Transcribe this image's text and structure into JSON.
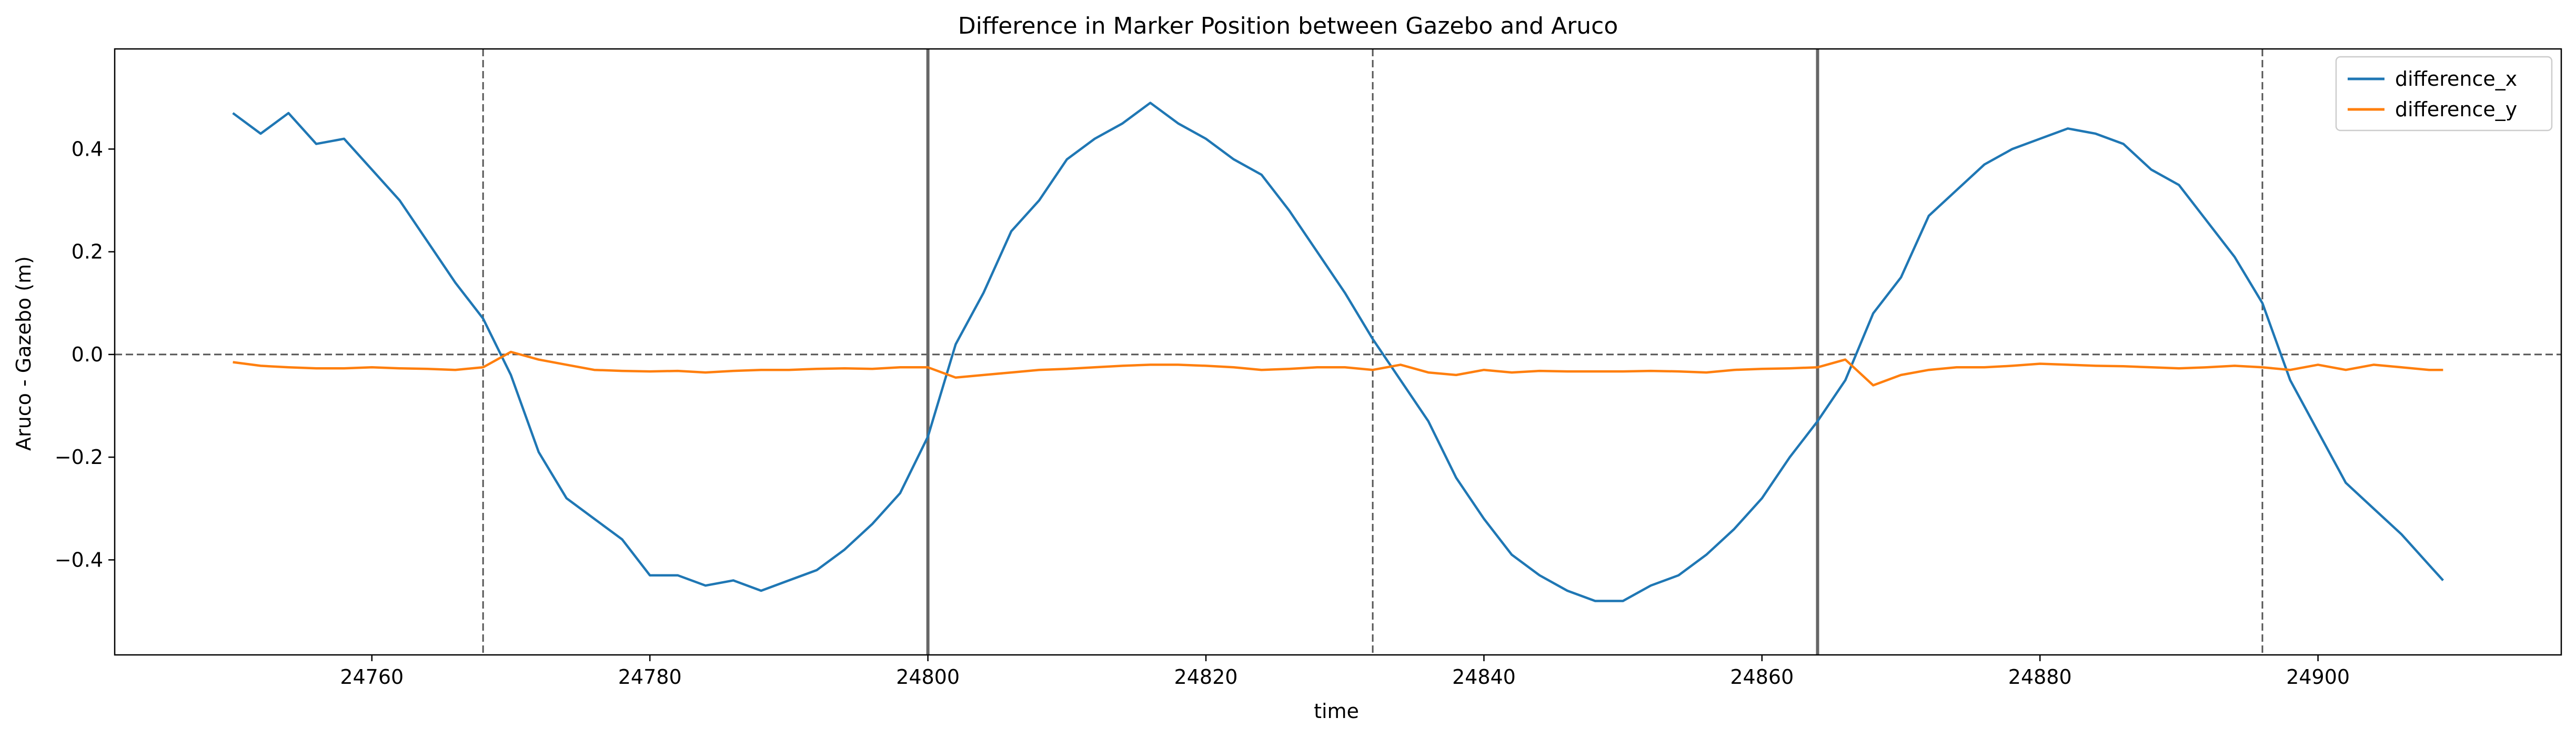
{
  "chart_data": {
    "type": "line",
    "title": "Difference in Marker Position between Gazebo and Aruco",
    "xlabel": "time",
    "ylabel": "Aruco - Gazebo (m)",
    "xlim": [
      24741.5,
      24917.5
    ],
    "ylim": [
      -0.585,
      0.595
    ],
    "xticks": [
      24760,
      24780,
      24800,
      24820,
      24840,
      24860,
      24880,
      24900
    ],
    "yticks": [
      -0.4,
      -0.2,
      0.0,
      0.2,
      0.4
    ],
    "ytick_labels": [
      "−0.4",
      "−0.2",
      "0.0",
      "0.2",
      "0.4"
    ],
    "legend_position": "top-right",
    "grid": false,
    "reference_lines": {
      "horizontal_dashed": [
        0.0
      ],
      "vertical_dashed": [
        24768,
        24832,
        24896
      ],
      "vertical_solid": [
        24800,
        24864
      ]
    },
    "series": [
      {
        "name": "difference_x",
        "color": "#1f77b4",
        "x": [
          24750,
          24752,
          24754,
          24756,
          24758,
          24760,
          24762,
          24764,
          24766,
          24768,
          24770,
          24772,
          24774,
          24776,
          24778,
          24780,
          24782,
          24784,
          24786,
          24788,
          24790,
          24792,
          24794,
          24796,
          24798,
          24800,
          24802,
          24804,
          24806,
          24808,
          24810,
          24812,
          24814,
          24816,
          24818,
          24820,
          24822,
          24824,
          24826,
          24828,
          24830,
          24832,
          24834,
          24836,
          24838,
          24840,
          24842,
          24844,
          24846,
          24848,
          24850,
          24852,
          24854,
          24856,
          24858,
          24860,
          24862,
          24864,
          24866,
          24868,
          24870,
          24872,
          24874,
          24876,
          24878,
          24880,
          24882,
          24884,
          24886,
          24888,
          24890,
          24892,
          24894,
          24896,
          24898,
          24900,
          24902,
          24904,
          24906,
          24908,
          24909
        ],
        "y": [
          0.47,
          0.43,
          0.47,
          0.41,
          0.42,
          0.36,
          0.3,
          0.22,
          0.14,
          0.07,
          -0.04,
          -0.19,
          -0.28,
          -0.32,
          -0.36,
          -0.43,
          -0.43,
          -0.45,
          -0.44,
          -0.46,
          -0.44,
          -0.42,
          -0.38,
          -0.33,
          -0.27,
          -0.16,
          0.02,
          0.12,
          0.24,
          0.3,
          0.38,
          0.42,
          0.45,
          0.49,
          0.45,
          0.42,
          0.38,
          0.35,
          0.28,
          0.2,
          0.12,
          0.03,
          -0.05,
          -0.13,
          -0.24,
          -0.32,
          -0.39,
          -0.43,
          -0.46,
          -0.48,
          -0.48,
          -0.45,
          -0.43,
          -0.39,
          -0.34,
          -0.28,
          -0.2,
          -0.13,
          -0.05,
          0.08,
          0.15,
          0.27,
          0.32,
          0.37,
          0.4,
          0.42,
          0.44,
          0.43,
          0.41,
          0.36,
          0.33,
          0.26,
          0.19,
          0.1,
          -0.05,
          -0.15,
          -0.25,
          -0.3,
          -0.35,
          -0.41,
          -0.44
        ]
      },
      {
        "name": "difference_y",
        "color": "#ff7f0e",
        "x": [
          24750,
          24752,
          24754,
          24756,
          24758,
          24760,
          24762,
          24764,
          24766,
          24768,
          24770,
          24772,
          24774,
          24776,
          24778,
          24780,
          24782,
          24784,
          24786,
          24788,
          24790,
          24792,
          24794,
          24796,
          24798,
          24800,
          24802,
          24804,
          24806,
          24808,
          24810,
          24812,
          24814,
          24816,
          24818,
          24820,
          24822,
          24824,
          24826,
          24828,
          24830,
          24832,
          24834,
          24836,
          24838,
          24840,
          24842,
          24844,
          24846,
          24848,
          24850,
          24852,
          24854,
          24856,
          24858,
          24860,
          24862,
          24864,
          24866,
          24868,
          24870,
          24872,
          24874,
          24876,
          24878,
          24880,
          24882,
          24884,
          24886,
          24888,
          24890,
          24892,
          24894,
          24896,
          24898,
          24900,
          24902,
          24904,
          24906,
          24908,
          24909
        ],
        "y": [
          -0.015,
          -0.022,
          -0.025,
          -0.027,
          -0.027,
          -0.025,
          -0.027,
          -0.028,
          -0.03,
          -0.025,
          0.005,
          -0.01,
          -0.02,
          -0.03,
          -0.032,
          -0.033,
          -0.032,
          -0.035,
          -0.032,
          -0.03,
          -0.03,
          -0.028,
          -0.027,
          -0.028,
          -0.025,
          -0.025,
          -0.045,
          -0.04,
          -0.035,
          -0.03,
          -0.028,
          -0.025,
          -0.022,
          -0.02,
          -0.02,
          -0.022,
          -0.025,
          -0.03,
          -0.028,
          -0.025,
          -0.025,
          -0.03,
          -0.02,
          -0.035,
          -0.04,
          -0.03,
          -0.035,
          -0.032,
          -0.033,
          -0.033,
          -0.033,
          -0.032,
          -0.033,
          -0.035,
          -0.03,
          -0.028,
          -0.027,
          -0.025,
          -0.01,
          -0.06,
          -0.04,
          -0.03,
          -0.025,
          -0.025,
          -0.022,
          -0.018,
          -0.02,
          -0.022,
          -0.023,
          -0.025,
          -0.027,
          -0.025,
          -0.022,
          -0.025,
          -0.03,
          -0.02,
          -0.03,
          -0.02,
          -0.025,
          -0.03,
          -0.03
        ]
      }
    ]
  }
}
